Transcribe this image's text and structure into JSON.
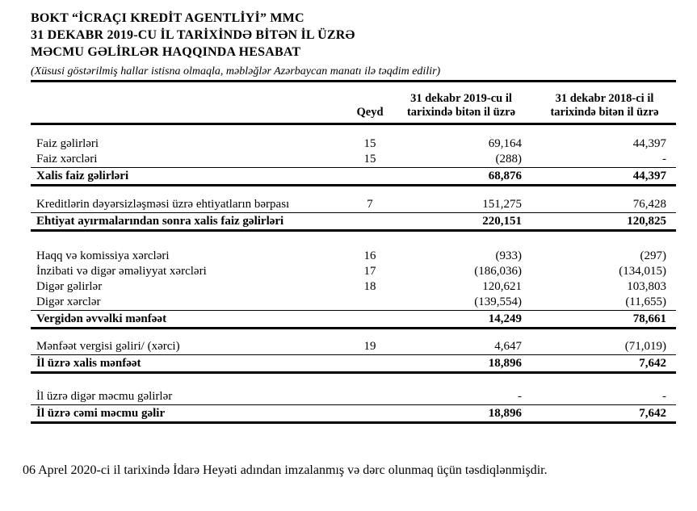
{
  "header": {
    "title_lines": [
      "BOKT “İCRAÇI KREDİT AGENTLİYİ” MMC",
      "31 DEKABR 2019-CU İL TARİXİNDƏ BİTƏN İL ÜZRƏ",
      "MƏCMU GƏLİRLƏR HAQQINDA HESABAT"
    ],
    "subtitle": "(Xüsusi göstərilmiş hallar istisna olmaqla, məbləğlər Azərbaycan manatı ilə təqdim edilir)"
  },
  "table": {
    "col_note": "Qeyd",
    "col_2019": {
      "line1": "31 dekabr 2019-cu il",
      "line2": "tarixində bitən il üzrə"
    },
    "col_2018": {
      "line1": "31 dekabr 2018-ci il",
      "line2": "tarixində bitən il üzrə"
    },
    "rows": [
      {
        "label": "Faiz gəlirləri",
        "note": "15",
        "v2019": "69,164",
        "v2018": "44,397"
      },
      {
        "label": "Faiz xərcləri",
        "note": "15",
        "v2019": "(288)",
        "v2018": "-"
      },
      {
        "label": "Xalis faiz gəlirləri",
        "note": "",
        "v2019": "68,876",
        "v2018": "44,397"
      },
      {
        "label": "Kreditlərin dəyərsizləşməsi üzrə ehtiyatların bərpası",
        "note": "7",
        "v2019": "151,275",
        "v2018": "76,428"
      },
      {
        "label": "Ehtiyat ayırmalarından sonra xalis faiz gəlirləri",
        "note": "",
        "v2019": "220,151",
        "v2018": "120,825"
      },
      {
        "label": "Haqq və komissiya xərcləri",
        "note": "16",
        "v2019": "(933)",
        "v2018": "(297)"
      },
      {
        "label": "İnzibati və digər əməliyyat xərcləri",
        "note": "17",
        "v2019": "(186,036)",
        "v2018": "(134,015)"
      },
      {
        "label": "Digər gəlirlər",
        "note": "18",
        "v2019": "120,621",
        "v2018": "103,803"
      },
      {
        "label": "Digər xərclər",
        "note": "",
        "v2019": "(139,554)",
        "v2018": "(11,655)"
      },
      {
        "label": "Vergidən əvvəlki mənfəət",
        "note": "",
        "v2019": "14,249",
        "v2018": "78,661"
      },
      {
        "label": "Mənfəət vergisi gəliri/ (xərci)",
        "note": "19",
        "v2019": "4,647",
        "v2018": "(71,019)"
      },
      {
        "label": "İl üzrə xalis mənfəət",
        "note": "",
        "v2019": "18,896",
        "v2018": "7,642"
      },
      {
        "label": "İl üzrə digər məcmu gəlirlər",
        "note": "",
        "v2019": "-",
        "v2018": "-"
      },
      {
        "label": "İl üzrə cəmi məcmu gəlir",
        "note": "",
        "v2019": "18,896",
        "v2018": "7,642"
      }
    ]
  },
  "footer": {
    "approval_note": "06 Aprel 2020-ci il tarixində İdarə Heyəti adından imzalanmış və dərc olunmaq üçün təsdiqlənmişdir."
  },
  "colors": {
    "text": "#000000",
    "background": "#ffffff",
    "rule": "#000000"
  }
}
